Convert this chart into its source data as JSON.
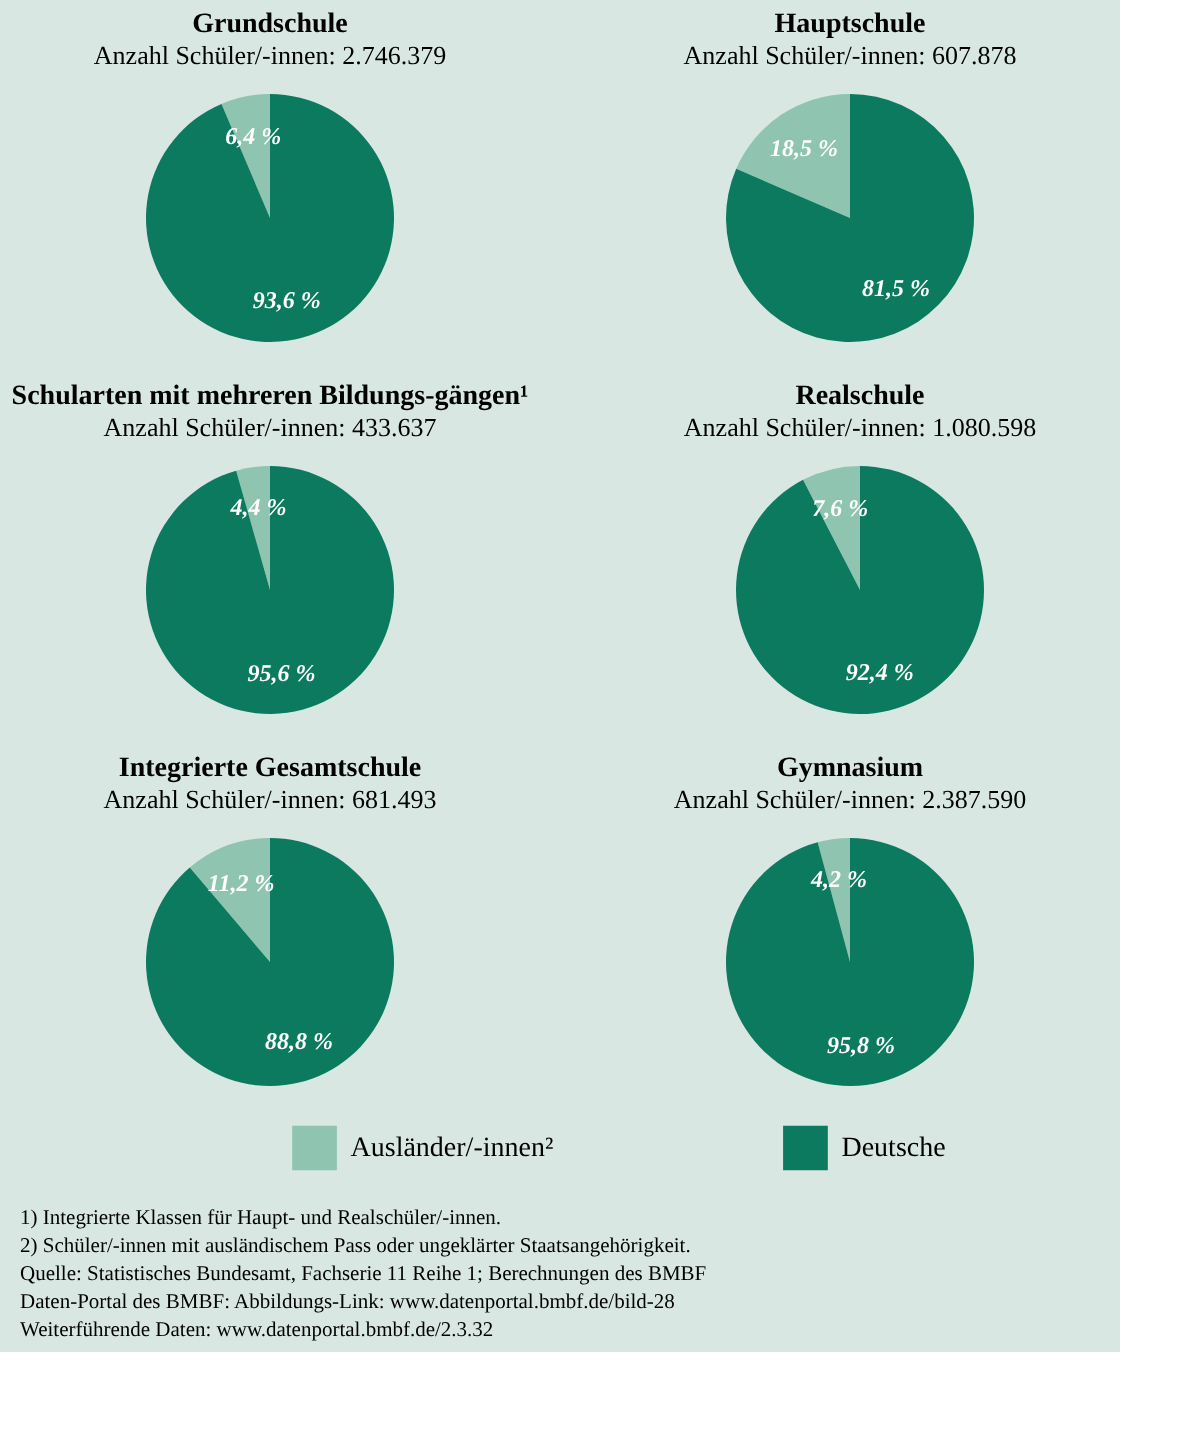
{
  "chart_data": [
    {
      "type": "pie",
      "title": "Grundschule",
      "subtitle": "Anzahl Schüler/-innen: 2.746.379",
      "values": [
        6.4,
        93.6
      ],
      "colors": [
        "#8fc4b0",
        "#0b7a5e"
      ],
      "value_labels": [
        "6,4 %",
        "93,6 %"
      ]
    },
    {
      "type": "pie",
      "title": "Hauptschule",
      "subtitle": "Anzahl Schüler/-innen: 607.878",
      "values": [
        18.5,
        81.5
      ],
      "colors": [
        "#8fc4b0",
        "#0b7a5e"
      ],
      "value_labels": [
        "18,5 %",
        "81,5 %"
      ]
    },
    {
      "type": "pie",
      "title": "Schularten mit mehreren Bildungs-gängen¹",
      "subtitle": "Anzahl Schüler/-innen: 433.637",
      "values": [
        4.4,
        95.6
      ],
      "colors": [
        "#8fc4b0",
        "#0b7a5e"
      ],
      "value_labels": [
        "4,4 %",
        "95,6 %"
      ]
    },
    {
      "type": "pie",
      "title": "Realschule",
      "subtitle": "Anzahl Schüler/-innen: 1.080.598",
      "values": [
        7.6,
        92.4
      ],
      "colors": [
        "#8fc4b0",
        "#0b7a5e"
      ],
      "value_labels": [
        "7,6 %",
        "92,4 %"
      ]
    },
    {
      "type": "pie",
      "title": "Integrierte Gesamtschule",
      "subtitle": "Anzahl Schüler/-innen: 681.493",
      "values": [
        11.2,
        88.8
      ],
      "colors": [
        "#8fc4b0",
        "#0b7a5e"
      ],
      "value_labels": [
        "11,2 %",
        "88,8 %"
      ]
    },
    {
      "type": "pie",
      "title": "Gymnasium",
      "subtitle": "Anzahl Schüler/-innen: 2.387.590",
      "categories": [
        "Ausländer/-innen²",
        "Deutsche"
      ],
      "values": [
        4.2,
        95.8
      ],
      "colors": [
        "#8fc4b0",
        "#0b7a5e"
      ],
      "value_labels": [
        "4,2 %",
        "95,8 %"
      ],
      "legend": "bottom",
      "annotations": [
        "1) Integrierte Klassen für Haupt- und Realschüler/-innen.",
        "2) Schüler/-innen mit ausländischem Pass oder ungeklärter Staatsangehörigkeit.",
        "Quelle: Statistisches Bundesamt, Fachserie 11 Reihe 1; Berechnungen des BMBF",
        "Daten-Portal des BMBF: Abbildungs-Link: www.datenportal.bmbf.de/bild-28",
        "Weiterführende Daten: www.datenportal.bmbf.de/2.3.32"
      ]
    }
  ]
}
